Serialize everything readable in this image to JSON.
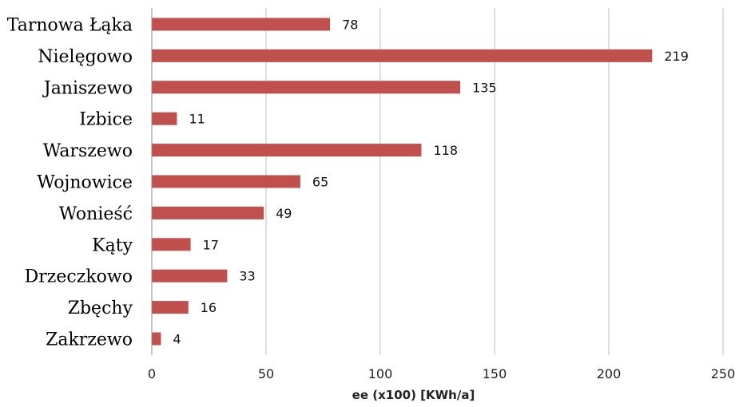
{
  "chart_data": {
    "type": "bar",
    "orientation": "horizontal",
    "categories": [
      "Tarnowa Łąka",
      "Nielęgowo",
      "Janiszewo",
      "Izbice",
      "Warszewo",
      "Wojnowice",
      "Wonieść",
      "Kąty",
      "Drzeczkowo",
      "Zbęchy",
      "Zakrzewo"
    ],
    "values": [
      78,
      219,
      135,
      11,
      118,
      65,
      49,
      17,
      33,
      16,
      4
    ],
    "value_labels": [
      "78",
      "219",
      "135",
      "11",
      "118",
      "65",
      "49",
      "17",
      "33",
      "16",
      "4"
    ],
    "xticks": [
      0,
      50,
      100,
      150,
      200,
      250
    ],
    "xtick_labels": [
      "0",
      "50",
      "100",
      "150",
      "200",
      "250"
    ],
    "xlim": [
      0,
      250
    ],
    "xlabel": "ee (x100) [KWh/a]",
    "ylabel": "",
    "title": "",
    "grid": "vertical",
    "legend": "none",
    "bar_color": "#c0504d"
  }
}
